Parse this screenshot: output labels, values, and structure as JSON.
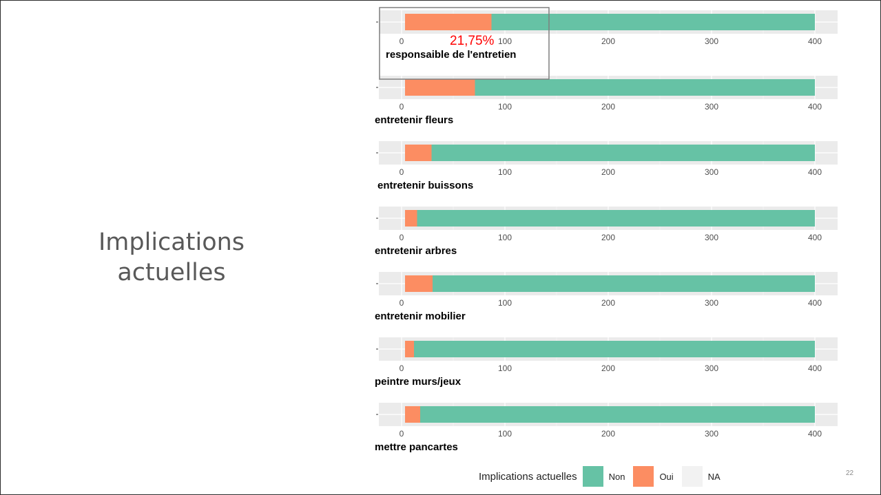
{
  "slide": {
    "title_lines": [
      "Implications",
      "actuelles"
    ],
    "page_number": "22"
  },
  "annotation": {
    "text": "21,75%",
    "color": "#ff0000"
  },
  "colors": {
    "Non": "#66c2a5",
    "Oui": "#fc8d62",
    "NA": "#f2f2f2",
    "panel_background": "#ebebeb",
    "axis_text": "#4d4d4d"
  },
  "legend": {
    "title": "Implications actuelles",
    "entries": [
      "Non",
      "Oui",
      "NA"
    ]
  },
  "chart_data": [
    {
      "type": "bar",
      "orientation": "horizontal",
      "stacked": true,
      "xlabel": "responsaible de l'entretien",
      "xlim": [
        0,
        400
      ],
      "xticks": [
        "0",
        "100",
        "200",
        "300",
        "400"
      ],
      "y_tick_labels": [
        ""
      ],
      "series": [
        {
          "name": "Oui",
          "values": [
            87
          ]
        },
        {
          "name": "Non",
          "values": [
            313
          ]
        }
      ]
    },
    {
      "type": "bar",
      "orientation": "horizontal",
      "stacked": true,
      "xlabel": "entretenir fleurs",
      "xlim": [
        0,
        400
      ],
      "xticks": [
        "0",
        "100",
        "200",
        "300",
        "400"
      ],
      "y_tick_labels": [
        ""
      ],
      "series": [
        {
          "name": "Oui",
          "values": [
            71
          ]
        },
        {
          "name": "Non",
          "values": [
            329
          ]
        }
      ]
    },
    {
      "type": "bar",
      "orientation": "horizontal",
      "stacked": true,
      "xlabel": "entretenir buissons",
      "xlim": [
        0,
        400
      ],
      "xticks": [
        "0",
        "100",
        "200",
        "300",
        "400"
      ],
      "y_tick_labels": [
        ""
      ],
      "series": [
        {
          "name": "Oui",
          "values": [
            29
          ]
        },
        {
          "name": "Non",
          "values": [
            371
          ]
        }
      ]
    },
    {
      "type": "bar",
      "orientation": "horizontal",
      "stacked": true,
      "xlabel": "entretenir arbres",
      "xlim": [
        0,
        400
      ],
      "xticks": [
        "0",
        "100",
        "200",
        "300",
        "400"
      ],
      "y_tick_labels": [
        ""
      ],
      "series": [
        {
          "name": "Oui",
          "values": [
            15
          ]
        },
        {
          "name": "Non",
          "values": [
            385
          ]
        }
      ]
    },
    {
      "type": "bar",
      "orientation": "horizontal",
      "stacked": true,
      "xlabel": "entretenir mobilier",
      "xlim": [
        0,
        400
      ],
      "xticks": [
        "0",
        "100",
        "200",
        "300",
        "400"
      ],
      "y_tick_labels": [
        ""
      ],
      "series": [
        {
          "name": "Oui",
          "values": [
            30
          ]
        },
        {
          "name": "Non",
          "values": [
            370
          ]
        }
      ]
    },
    {
      "type": "bar",
      "orientation": "horizontal",
      "stacked": true,
      "xlabel": "peintre murs/jeux",
      "xlim": [
        0,
        400
      ],
      "xticks": [
        "0",
        "100",
        "200",
        "300",
        "400"
      ],
      "y_tick_labels": [
        ""
      ],
      "series": [
        {
          "name": "Oui",
          "values": [
            12
          ]
        },
        {
          "name": "Non",
          "values": [
            388
          ]
        }
      ]
    },
    {
      "type": "bar",
      "orientation": "horizontal",
      "stacked": true,
      "xlabel": "mettre pancartes",
      "xlim": [
        0,
        400
      ],
      "xticks": [
        "0",
        "100",
        "200",
        "300",
        "400"
      ],
      "y_tick_labels": [
        ""
      ],
      "series": [
        {
          "name": "Oui",
          "values": [
            18
          ]
        },
        {
          "name": "Non",
          "values": [
            382
          ]
        }
      ]
    }
  ]
}
